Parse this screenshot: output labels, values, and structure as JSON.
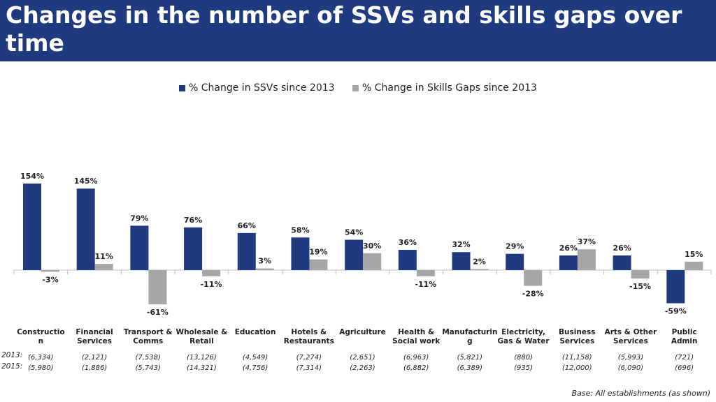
{
  "header": {
    "title": "Changes in the number of SSVs and skills gaps over time"
  },
  "legend": {
    "ssv_label": "% Change in SSVs since 2013",
    "gaps_label": "% Change in Skills Gaps since 2013"
  },
  "colors": {
    "ssv": "#1f3a7f",
    "gaps": "#a6a6a6",
    "header_bg": "#1f3a7f"
  },
  "rows": {
    "label_2013": "2013:",
    "label_2015": "2015:"
  },
  "footnote": "Base: All establishments (as shown)",
  "chart_data": {
    "type": "bar",
    "categories": [
      [
        "Constructio",
        "n"
      ],
      [
        "Financial",
        "Services"
      ],
      [
        "Transport &",
        "Comms"
      ],
      [
        "Wholesale &",
        "Retail"
      ],
      [
        "Education"
      ],
      [
        "Hotels &",
        "Restaurants"
      ],
      [
        "Agriculture"
      ],
      [
        "Health &",
        "Social work"
      ],
      [
        "Manufacturin",
        "g"
      ],
      [
        "Electricity,",
        "Gas & Water"
      ],
      [
        "Business",
        "Services"
      ],
      [
        "Arts & Other",
        "Services"
      ],
      [
        "Public",
        "Admin"
      ]
    ],
    "series": [
      {
        "name": "% Change in SSVs since 2013",
        "values": [
          154,
          145,
          79,
          76,
          66,
          58,
          54,
          36,
          32,
          29,
          26,
          26,
          -59
        ],
        "labels": [
          "154%",
          "145%",
          "79%",
          "76%",
          "66%",
          "58%",
          "54%",
          "36%",
          "32%",
          "29%",
          "26%",
          "26%",
          "-59%"
        ]
      },
      {
        "name": "% Change in Skills Gaps since 2013",
        "values": [
          -3,
          11,
          -61,
          -11,
          3,
          19,
          30,
          -11,
          2,
          -28,
          37,
          -15,
          15
        ],
        "labels": [
          "-3%",
          "11%",
          "-61%",
          "-11%",
          "3%",
          "19%",
          "30%",
          "-11%",
          "2%",
          "-28%",
          "37%",
          "-15%",
          "15%"
        ]
      }
    ],
    "bases_2013": [
      "(6,334)",
      "(2,121)",
      "(7,538)",
      "(13,126)",
      "(4,549)",
      "(7,274)",
      "(2,651)",
      "(6,963)",
      "(5,821)",
      "(880)",
      "(11,158)",
      "(5,993)",
      "(721)"
    ],
    "bases_2015": [
      "(5,980)",
      "(1,886)",
      "(5,743)",
      "(14,321)",
      "(4,756)",
      "(7,314)",
      "(2,263)",
      "(6,882)",
      "(6,389)",
      "(935)",
      "(12,000)",
      "(6,090)",
      "(696)"
    ],
    "ylim": [
      -61,
      154
    ],
    "grid": false,
    "legend_position": "top-center"
  }
}
